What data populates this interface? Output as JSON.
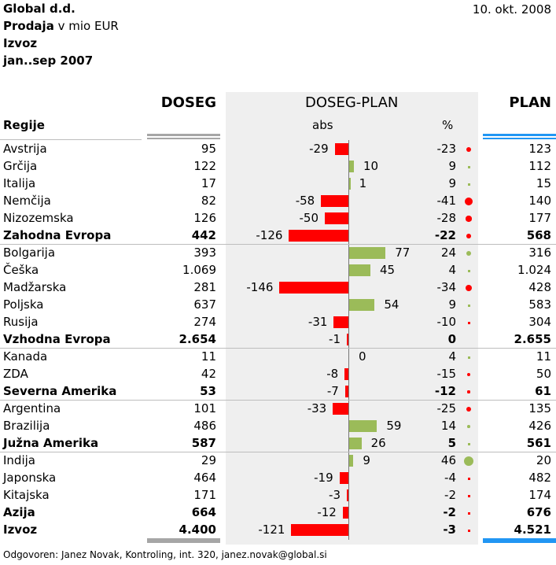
{
  "header": {
    "company": "Global d.d.",
    "measure_bold": "Prodaja",
    "measure_rest": " v mio EUR",
    "scope": "Izvoz",
    "period": "jan..sep 2007",
    "date": "10. okt. 2008"
  },
  "columns": {
    "region": "Regije",
    "actual": "DOSEG",
    "variance": "DOSEG-PLAN",
    "abs": "abs",
    "pct": "%",
    "plan": "PLAN"
  },
  "footer": "Odgovoren: Janez Novak, Kontroling, int. 320, janez.novak@global.si",
  "colors": {
    "positive": "#9bbb59",
    "negative": "#ff0000",
    "actual_bar": "#a6a6a6",
    "plan_bar": "#2196f3",
    "band": "#efefef"
  },
  "chart_data": {
    "type": "table",
    "title": "Prodaja v mio EUR",
    "rows": [
      {
        "region": "Avstrija",
        "actual": "95",
        "plan": "123",
        "abs": -29,
        "pct": -23,
        "bold": false
      },
      {
        "region": "Grčija",
        "actual": "122",
        "plan": "112",
        "abs": 10,
        "pct": 9,
        "bold": false
      },
      {
        "region": "Italija",
        "actual": "17",
        "plan": "15",
        "abs": 1,
        "pct": 9,
        "bold": false
      },
      {
        "region": "Nemčija",
        "actual": "82",
        "plan": "140",
        "abs": -58,
        "pct": -41,
        "bold": false
      },
      {
        "region": "Nizozemska",
        "actual": "126",
        "plan": "177",
        "abs": -50,
        "pct": -28,
        "bold": false
      },
      {
        "region": "Zahodna Evropa",
        "actual": "442",
        "plan": "568",
        "abs": -126,
        "pct": -22,
        "bold": true
      },
      {
        "region": "Bolgarija",
        "actual": "393",
        "plan": "316",
        "abs": 77,
        "pct": 24,
        "bold": false
      },
      {
        "region": "Češka",
        "actual": "1.069",
        "plan": "1.024",
        "abs": 45,
        "pct": 4,
        "bold": false
      },
      {
        "region": "Madžarska",
        "actual": "281",
        "plan": "428",
        "abs": -146,
        "pct": -34,
        "bold": false
      },
      {
        "region": "Poljska",
        "actual": "637",
        "plan": "583",
        "abs": 54,
        "pct": 9,
        "bold": false
      },
      {
        "region": "Rusija",
        "actual": "274",
        "plan": "304",
        "abs": -31,
        "pct": -10,
        "bold": false
      },
      {
        "region": "Vzhodna Evropa",
        "actual": "2.654",
        "plan": "2.655",
        "abs": -1,
        "pct": 0,
        "bold": true
      },
      {
        "region": "Kanada",
        "actual": "11",
        "plan": "11",
        "abs": 0,
        "pct": 4,
        "bold": false
      },
      {
        "region": "ZDA",
        "actual": "42",
        "plan": "50",
        "abs": -8,
        "pct": -15,
        "bold": false
      },
      {
        "region": "Severna Amerika",
        "actual": "53",
        "plan": "61",
        "abs": -7,
        "pct": -12,
        "bold": true
      },
      {
        "region": "Argentina",
        "actual": "101",
        "plan": "135",
        "abs": -33,
        "pct": -25,
        "bold": false
      },
      {
        "region": "Brazilija",
        "actual": "486",
        "plan": "426",
        "abs": 59,
        "pct": 14,
        "bold": false
      },
      {
        "region": "Južna Amerika",
        "actual": "587",
        "plan": "561",
        "abs": 26,
        "pct": 5,
        "bold": true
      },
      {
        "region": "Indija",
        "actual": "29",
        "plan": "20",
        "abs": 9,
        "pct": 46,
        "bold": false
      },
      {
        "region": "Japonska",
        "actual": "464",
        "plan": "482",
        "abs": -19,
        "pct": -4,
        "bold": false
      },
      {
        "region": "Kitajska",
        "actual": "171",
        "plan": "174",
        "abs": -3,
        "pct": -2,
        "bold": false
      },
      {
        "region": "Azija",
        "actual": "664",
        "plan": "676",
        "abs": -12,
        "pct": -2,
        "bold": true
      },
      {
        "region": "Izvoz",
        "actual": "4.400",
        "plan": "4.521",
        "abs": -121,
        "pct": -3,
        "bold": true
      }
    ]
  }
}
